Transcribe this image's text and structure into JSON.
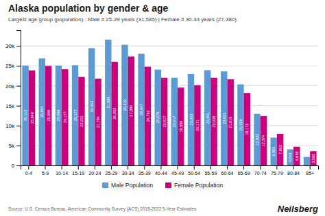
{
  "chart_data": {
    "type": "bar",
    "title": "Alaska population by gender & age",
    "subtitle": "Largest age group (population) : Male # 25-29 years (31,585) | Female # 30-34 years (27,380)",
    "annotations": [
      "Source: U.S. Census Bureau, American Community Survey (ACS) 2018-2022 5-Year Estimates",
      "Neilsberg"
    ],
    "categories": [
      "0-4",
      "5-9",
      "10-14",
      "15-19",
      "20-24",
      "25-29",
      "30-34",
      "35-39",
      "40-44",
      "45-49",
      "50-54",
      "55-59",
      "60-64",
      "65-69",
      "70-74",
      "75-79",
      "80-84",
      "85+"
    ],
    "series": [
      {
        "name": "Male Population",
        "color": "#5b9bd5",
        "values": [
          25113,
          26894,
          25096,
          25177,
          29463,
          31585,
          30310,
          28047,
          24076,
          22017,
          23003,
          23901,
          23633,
          20358,
          12932,
          6983,
          4043,
          2117
        ],
        "value_labels": [
          "25,113",
          "26,894",
          "25,096",
          "25,177",
          "29,463",
          "31,585",
          "30,310",
          "28,047",
          "24,076",
          "22,017",
          "23,003",
          "23,901",
          "23,633",
          "20,358",
          "12,932",
          "6,983",
          "4,043",
          null
        ]
      },
      {
        "name": "Female Population",
        "color": "#cc007a",
        "values": [
          23849,
          25006,
          24177,
          22231,
          21784,
          26003,
          27380,
          24792,
          22017,
          19556,
          20171,
          22026,
          21619,
          18173,
          12374,
          7903,
          4688,
          3565
        ],
        "value_labels": [
          "23,849",
          "25,006",
          "24,177",
          "22,231",
          "21,784",
          "26,003",
          "27,380",
          "24,792",
          "22,017",
          "19,556",
          "20,171",
          "22,026",
          "21,619",
          "18,173",
          "12,374",
          "7,903",
          "4,688",
          "3,565"
        ]
      }
    ],
    "ylim": [
      0,
      34000
    ],
    "yticks": [
      0,
      {
        "value": 5000,
        "label": "5k"
      },
      {
        "value": 10000,
        "label": "10k"
      },
      {
        "value": 15000,
        "label": "15k"
      },
      {
        "value": 20000,
        "label": "20k"
      },
      {
        "value": 25000,
        "label": "25k"
      },
      {
        "value": 30000,
        "label": "30k"
      }
    ],
    "grid": true,
    "legend": "bottom",
    "data_labels": true
  }
}
